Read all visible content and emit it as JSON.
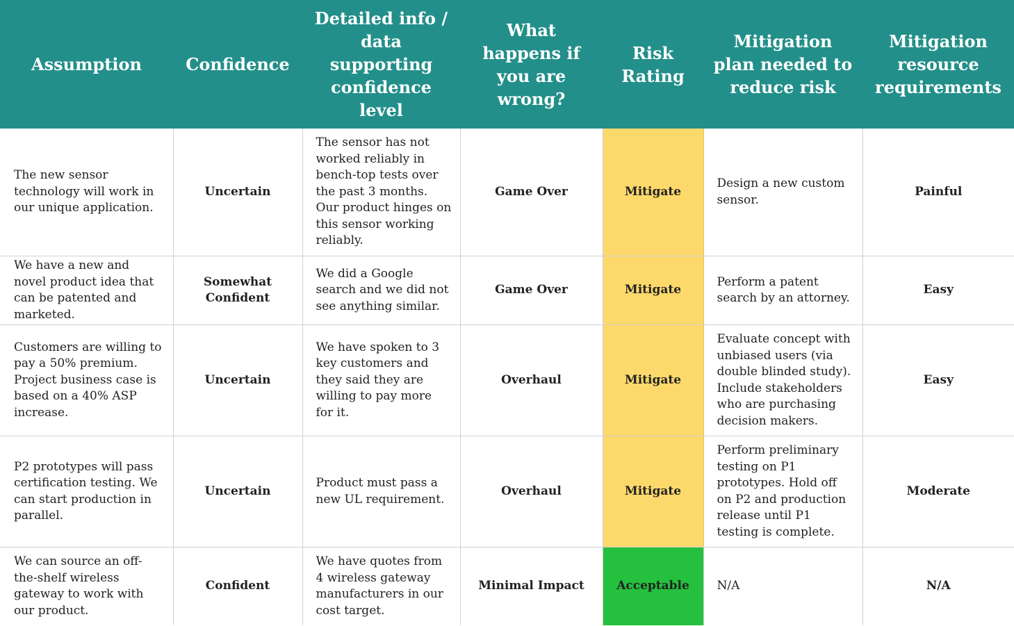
{
  "colors": {
    "header_bg": "#238f8a",
    "mitigate": "#fdd96b",
    "acceptable": "#25c03e"
  },
  "header": {
    "assumption": "Assumption",
    "confidence": "Confidence",
    "detail": "Detailed info / data supporting confidence level",
    "wrong": "What happens if you are wrong?",
    "risk": "Risk Rating",
    "plan": "Mitigation plan needed to reduce risk",
    "resources": "Mitigation resource requirements"
  },
  "rows": [
    {
      "assumption": "The new sensor technology will work in our unique application.",
      "confidence": "Uncertain",
      "detail": "The sensor has not worked reliably in bench-top tests over the past 3 months. Our product hinges on this sensor working reliably.",
      "wrong": "Game Over",
      "risk": "Mitigate",
      "plan": "Design a new custom sensor.",
      "resources": "Painful"
    },
    {
      "assumption": "We have a new and novel product idea that can be patented and marketed.",
      "confidence": "Somewhat Confident",
      "detail": "We did a Google search and we did not see anything similar.",
      "wrong": "Game Over",
      "risk": "Mitigate",
      "plan": "Perform a patent search by an attorney.",
      "resources": "Easy"
    },
    {
      "assumption": "Customers are willing to pay a 50% premium. Project business case is based on a 40% ASP increase.",
      "confidence": "Uncertain",
      "detail": "We have spoken to 3 key customers and they said they are willing to pay more for it.",
      "wrong": "Overhaul",
      "risk": "Mitigate",
      "plan": "Evaluate concept with unbiased users (via double blinded study). Include stakeholders who are purchasing decision makers.",
      "resources": "Easy"
    },
    {
      "assumption": "P2 prototypes will pass certification testing.  We can start production in parallel.",
      "confidence": "Uncertain",
      "detail": "Product must pass a new UL requirement.",
      "wrong": "Overhaul",
      "risk": "Mitigate",
      "plan": "Perform preliminary testing on P1 prototypes.  Hold off on P2 and production release until P1 testing is complete.",
      "resources": "Moderate"
    },
    {
      "assumption": "We can source an off-the-shelf wireless gateway to work with our product.",
      "confidence": "Confident",
      "detail": "We have quotes from 4 wireless gateway manufacturers in our cost target.",
      "wrong": "Minimal Impact",
      "risk": "Acceptable",
      "plan": "N/A",
      "resources": "N/A"
    }
  ]
}
